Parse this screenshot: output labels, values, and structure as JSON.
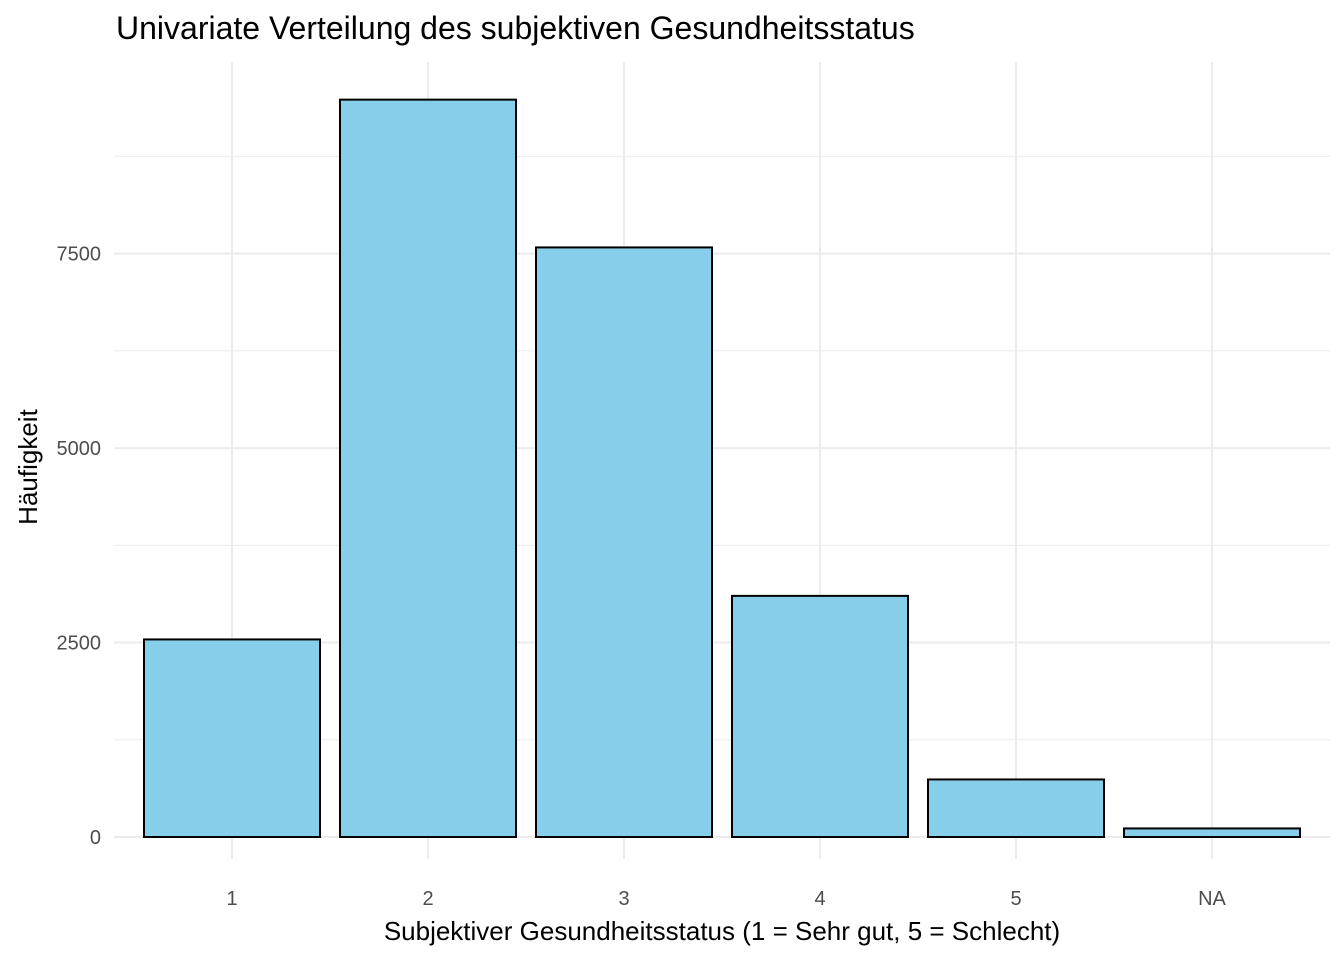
{
  "chart_data": {
    "type": "bar",
    "title": "Univariate Verteilung des subjektiven Gesundheitsstatus",
    "xlabel": "Subjektiver Gesundheitsstatus (1 = Sehr gut, 5 = Schlecht)",
    "ylabel": "Häufigkeit",
    "categories": [
      "1",
      "2",
      "3",
      "4",
      "5",
      "NA"
    ],
    "values": [
      2540,
      9480,
      7580,
      3100,
      740,
      110
    ],
    "ylim": [
      0,
      9960
    ],
    "yticks": [
      0,
      2500,
      5000,
      7500
    ],
    "yticks_minor": [
      1250,
      3750,
      6250,
      8750
    ],
    "grid": true,
    "colors": {
      "bar_fill": "#87CEEB",
      "bar_stroke": "#000000",
      "grid": "#ebebeb"
    }
  }
}
